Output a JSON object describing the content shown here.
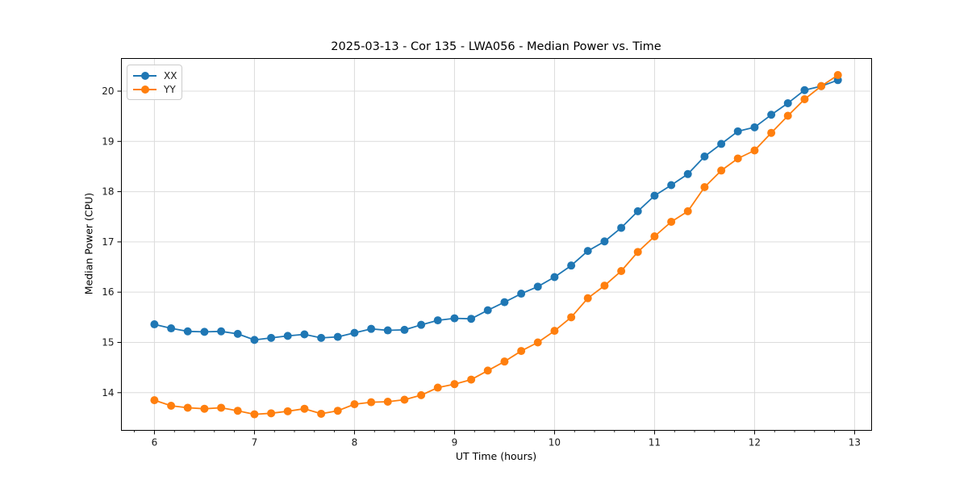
{
  "figure": {
    "background": "#ffffff"
  },
  "chart_data": {
    "type": "line",
    "title": "2025-03-13 - Cor 135 - LWA056 - Median Power vs. Time",
    "xlabel": "UT Time (hours)",
    "ylabel": "Median Power (CPU)",
    "xlim": [
      5.67,
      13.17
    ],
    "ylim": [
      13.25,
      20.65
    ],
    "xticks": [
      6,
      7,
      8,
      9,
      10,
      11,
      12,
      13
    ],
    "yticks": [
      14,
      15,
      16,
      17,
      18,
      19,
      20
    ],
    "x_minor_tick_step": 0.2,
    "grid": true,
    "legend_position": "upper left",
    "marker": "circle",
    "colors": {
      "grid": "#dcdcdc",
      "axis": "#000000",
      "tick_text": "#1a1a1a"
    },
    "x": [
      6.0,
      6.167,
      6.333,
      6.5,
      6.667,
      6.833,
      7.0,
      7.167,
      7.333,
      7.5,
      7.667,
      7.833,
      8.0,
      8.167,
      8.333,
      8.5,
      8.667,
      8.833,
      9.0,
      9.167,
      9.333,
      9.5,
      9.667,
      9.833,
      10.0,
      10.167,
      10.333,
      10.5,
      10.667,
      10.833,
      11.0,
      11.167,
      11.333,
      11.5,
      11.667,
      11.833,
      12.0,
      12.167,
      12.333,
      12.5,
      12.667,
      12.833
    ],
    "series": [
      {
        "name": "XX",
        "color": "#1f77b4",
        "values": [
          15.36,
          15.28,
          15.22,
          15.21,
          15.22,
          15.17,
          15.05,
          15.09,
          15.13,
          15.16,
          15.09,
          15.11,
          15.19,
          15.27,
          15.24,
          15.25,
          15.35,
          15.44,
          15.48,
          15.47,
          15.64,
          15.8,
          15.97,
          16.11,
          16.3,
          16.53,
          16.82,
          17.01,
          17.28,
          17.61,
          17.92,
          18.13,
          18.35,
          18.7,
          18.95,
          19.2,
          19.28,
          19.53,
          19.76,
          20.02,
          20.1,
          20.22
        ]
      },
      {
        "name": "YY",
        "color": "#ff7f0e",
        "values": [
          13.85,
          13.74,
          13.7,
          13.68,
          13.7,
          13.64,
          13.57,
          13.59,
          13.63,
          13.68,
          13.58,
          13.64,
          13.77,
          13.81,
          13.82,
          13.86,
          13.95,
          14.1,
          14.17,
          14.26,
          14.44,
          14.62,
          14.83,
          15.0,
          15.23,
          15.5,
          15.88,
          16.13,
          16.42,
          16.8,
          17.11,
          17.4,
          17.61,
          18.09,
          18.42,
          18.66,
          18.82,
          19.17,
          19.51,
          19.84,
          20.1,
          20.32
        ]
      }
    ]
  }
}
